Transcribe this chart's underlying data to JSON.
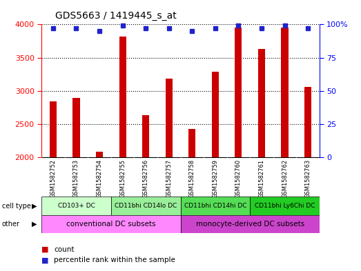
{
  "title": "GDS5663 / 1419445_s_at",
  "samples": [
    "GSM1582752",
    "GSM1582753",
    "GSM1582754",
    "GSM1582755",
    "GSM1582756",
    "GSM1582757",
    "GSM1582758",
    "GSM1582759",
    "GSM1582760",
    "GSM1582761",
    "GSM1582762",
    "GSM1582763"
  ],
  "counts": [
    2840,
    2890,
    2080,
    3820,
    2630,
    3180,
    2430,
    3290,
    3950,
    3630,
    3950,
    3060
  ],
  "percentiles": [
    97,
    97,
    95,
    99,
    97,
    97,
    95,
    97,
    99,
    97,
    99,
    97
  ],
  "ylim_left": [
    2000,
    4000
  ],
  "ylim_right": [
    0,
    100
  ],
  "yticks_left": [
    2000,
    2500,
    3000,
    3500,
    4000
  ],
  "yticks_right": [
    0,
    25,
    50,
    75,
    100
  ],
  "bar_color": "#cc0000",
  "dot_color": "#2222cc",
  "grid_color": "#000000",
  "cell_type_colors": [
    "#ccffcc",
    "#99ee99",
    "#55dd55",
    "#22cc22"
  ],
  "cell_type_labels": [
    {
      "label": "CD103+ DC",
      "start": 0,
      "end": 3
    },
    {
      "label": "CD11bhi CD14lo DC",
      "start": 3,
      "end": 6
    },
    {
      "label": "CD11bhi CD14hi DC",
      "start": 6,
      "end": 9
    },
    {
      "label": "CD11bhi Ly6Chi DC",
      "start": 9,
      "end": 12
    }
  ],
  "other_colors": [
    "#ff88ff",
    "#cc44cc"
  ],
  "other_labels": [
    {
      "label": "conventional DC subsets",
      "start": 0,
      "end": 6
    },
    {
      "label": "monocyte-derived DC subsets",
      "start": 6,
      "end": 12
    }
  ],
  "sample_bg_color": "#cccccc",
  "legend_count_color": "#cc0000",
  "legend_percentile_color": "#2222cc",
  "bar_width": 0.3
}
